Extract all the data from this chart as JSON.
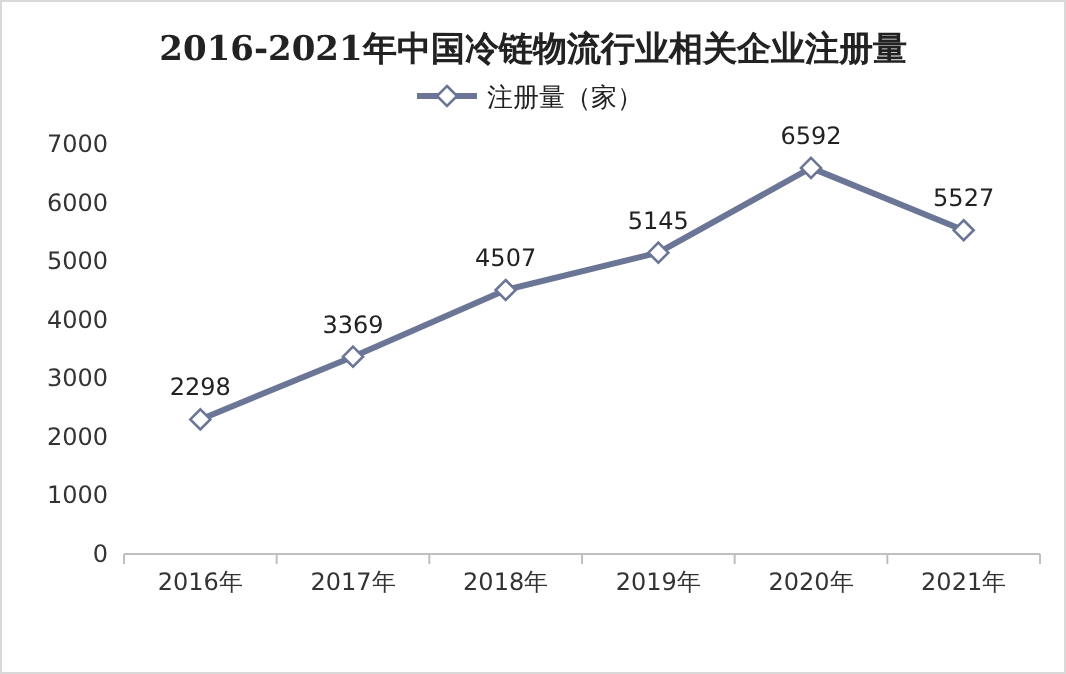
{
  "chart_data": {
    "type": "line",
    "title": "2016-2021年中国冷链物流行业相关企业注册量",
    "categories": [
      "2016年",
      "2017年",
      "2018年",
      "2019年",
      "2020年",
      "2021年"
    ],
    "series": [
      {
        "name": "注册量（家）",
        "color": "#6b7596",
        "values": [
          2298,
          3369,
          4507,
          5145,
          6592,
          5527
        ]
      }
    ],
    "ylim": [
      0,
      7000
    ],
    "yticks": [
      0,
      1000,
      2000,
      3000,
      4000,
      5000,
      6000,
      7000
    ],
    "data_labels": true,
    "legend": "top",
    "marker": "diamond",
    "line_style": "solid",
    "grid": false
  }
}
